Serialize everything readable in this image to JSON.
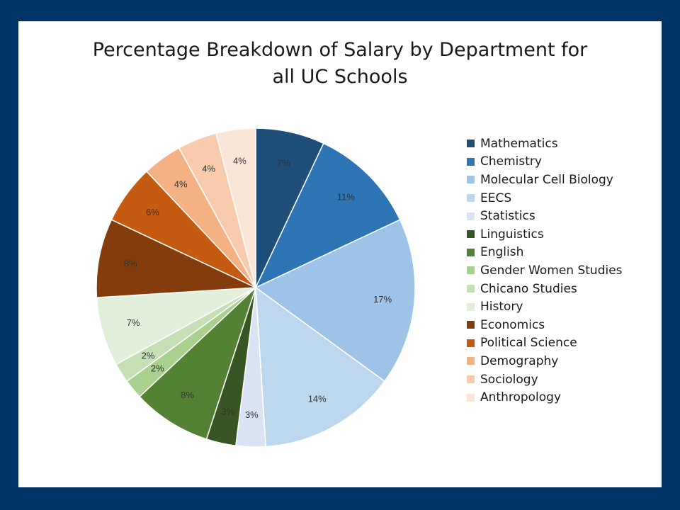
{
  "chart_data": {
    "type": "pie",
    "title_lines": [
      "Percentage Breakdown of Salary by Department for",
      "all UC Schools"
    ],
    "legend_position": "right",
    "slices": [
      {
        "name": "Mathematics",
        "value": 7,
        "label": "7%",
        "color": "#1f4e79"
      },
      {
        "name": "Chemistry",
        "value": 11,
        "label": "11%",
        "color": "#2e75b6"
      },
      {
        "name": "Molecular Cell Biology",
        "value": 17,
        "label": "17%",
        "color": "#9dc3e6"
      },
      {
        "name": "EECS",
        "value": 14,
        "label": "14%",
        "color": "#bdd7ee"
      },
      {
        "name": "Statistics",
        "value": 3,
        "label": "3%",
        "color": "#dae3f3"
      },
      {
        "name": "Linguistics",
        "value": 3,
        "label": "3%",
        "color": "#375623"
      },
      {
        "name": "English",
        "value": 8,
        "label": "8%",
        "color": "#548235"
      },
      {
        "name": "Gender Women Studies",
        "value": 2,
        "label": "2%",
        "color": "#a9d18e"
      },
      {
        "name": "Chicano Studies",
        "value": 2,
        "label": "2%",
        "color": "#c5e0b4"
      },
      {
        "name": "History",
        "value": 7,
        "label": "7%",
        "color": "#e2efda"
      },
      {
        "name": "Economics",
        "value": 8,
        "label": "8%",
        "color": "#843c0c"
      },
      {
        "name": "Political Science",
        "value": 6,
        "label": "6%",
        "color": "#c55a11"
      },
      {
        "name": "Demography",
        "value": 4,
        "label": "4%",
        "color": "#f4b183"
      },
      {
        "name": "Sociology",
        "value": 4,
        "label": "4%",
        "color": "#f8cbad"
      },
      {
        "name": "Anthropology",
        "value": 4,
        "label": "4%",
        "color": "#fbe5d6"
      }
    ]
  }
}
